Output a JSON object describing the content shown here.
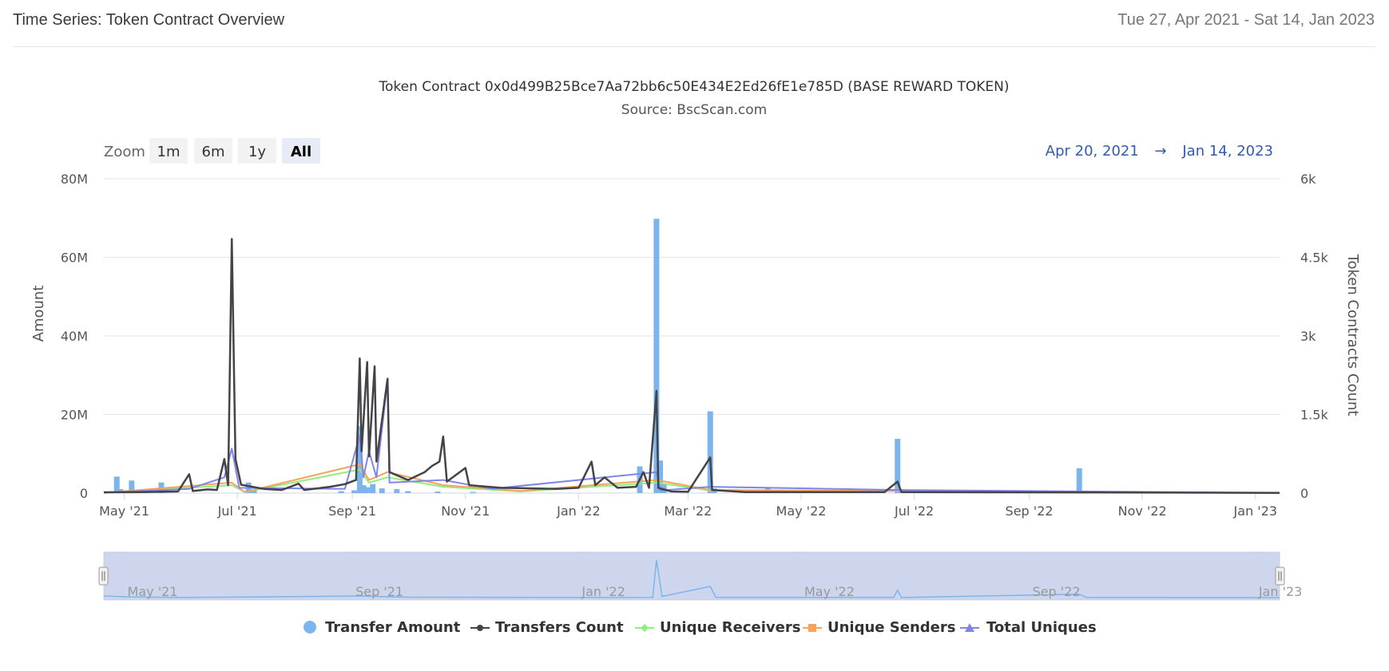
{
  "header": {
    "title": "Time Series: Token Contract Overview",
    "date_range": "Tue 27, Apr 2021 - Sat 14, Jan 2023"
  },
  "toolbar": {
    "zoom_label": "Zoom",
    "buttons": [
      "1m",
      "6m",
      "1y",
      "All"
    ],
    "active_button": "All",
    "range_from": "Apr 20, 2021",
    "range_arrow": "→",
    "range_to": "Jan 14, 2023"
  },
  "chart_data": {
    "type": "bar",
    "title": "Token Contract 0x0d499B25Bce7Aa72bb6c50E434E2Ed26fE1e785D (BASE REWARD TOKEN)",
    "subtitle": "Source: BscScan.com",
    "xlabel": "",
    "ylabel": "Amount",
    "y2label": "Token Contracts Count",
    "ylim": [
      0,
      80000000
    ],
    "y2lim": [
      0,
      6000
    ],
    "xlim": [
      "2021-04-20",
      "2023-01-14"
    ],
    "y_ticks": [
      "0",
      "20M",
      "40M",
      "60M",
      "80M"
    ],
    "y2_ticks": [
      "0",
      "1.5k",
      "3k",
      "4.5k",
      "6k"
    ],
    "x_ticks": [
      "May '21",
      "Jul '21",
      "Sep '21",
      "Nov '21",
      "Jan '22",
      "Mar '22",
      "May '22",
      "Jul '22",
      "Sep '22",
      "Nov '22",
      "Jan '23"
    ],
    "navigator_ticks": [
      "May '21",
      "Sep '21",
      "Jan '22",
      "May '22",
      "Sep '22",
      "Jan '23"
    ],
    "grid": true,
    "legend_position": "bottom-center",
    "colors": {
      "transfer_amount": "#7cb5ec",
      "transfers_count": "#434348",
      "unique_receivers": "#90ed7d",
      "unique_senders": "#f7a35c",
      "total_uniques": "#8085e9"
    },
    "series": [
      {
        "name": "Transfer Amount",
        "axis": "left",
        "kind": "column",
        "points": [
          [
            "2021-04-27",
            4200000
          ],
          [
            "2021-04-29",
            1000000
          ],
          [
            "2021-05-05",
            3200000
          ],
          [
            "2021-05-21",
            2700000
          ],
          [
            "2021-07-07",
            2700000
          ],
          [
            "2021-07-10",
            800000
          ],
          [
            "2021-08-26",
            500000
          ],
          [
            "2021-09-02",
            700000
          ],
          [
            "2021-09-05",
            17000000
          ],
          [
            "2021-09-07",
            2000000
          ],
          [
            "2021-09-09",
            1500000
          ],
          [
            "2021-09-12",
            2300000
          ],
          [
            "2021-09-17",
            1200000
          ],
          [
            "2021-09-25",
            1000000
          ],
          [
            "2021-10-01",
            500000
          ],
          [
            "2021-10-17",
            400000
          ],
          [
            "2021-11-05",
            300000
          ],
          [
            "2022-02-03",
            6800000
          ],
          [
            "2022-02-12",
            69800000
          ],
          [
            "2022-02-14",
            8300000
          ],
          [
            "2022-02-16",
            2200000
          ],
          [
            "2022-03-13",
            20800000
          ],
          [
            "2022-03-15",
            1200000
          ],
          [
            "2022-04-09",
            300000
          ],
          [
            "2022-04-13",
            1400000
          ],
          [
            "2022-06-22",
            13800000
          ],
          [
            "2022-09-28",
            6300000
          ]
        ]
      },
      {
        "name": "Transfers Count",
        "axis": "right",
        "kind": "line",
        "points": [
          [
            "2021-04-20",
            15
          ],
          [
            "2021-05-10",
            20
          ],
          [
            "2021-05-30",
            30
          ],
          [
            "2021-06-05",
            360
          ],
          [
            "2021-06-07",
            40
          ],
          [
            "2021-06-15",
            70
          ],
          [
            "2021-06-20",
            60
          ],
          [
            "2021-06-24",
            650
          ],
          [
            "2021-06-26",
            150
          ],
          [
            "2021-06-28",
            4850
          ],
          [
            "2021-06-30",
            650
          ],
          [
            "2021-07-03",
            160
          ],
          [
            "2021-07-15",
            80
          ],
          [
            "2021-07-25",
            60
          ],
          [
            "2021-08-03",
            180
          ],
          [
            "2021-08-06",
            60
          ],
          [
            "2021-08-20",
            120
          ],
          [
            "2021-08-28",
            170
          ],
          [
            "2021-09-03",
            250
          ],
          [
            "2021-09-05",
            2570
          ],
          [
            "2021-09-06",
            800
          ],
          [
            "2021-09-09",
            2500
          ],
          [
            "2021-09-10",
            700
          ],
          [
            "2021-09-13",
            2420
          ],
          [
            "2021-09-14",
            600
          ],
          [
            "2021-09-20",
            2180
          ],
          [
            "2021-09-21",
            400
          ],
          [
            "2021-10-01",
            250
          ],
          [
            "2021-10-10",
            400
          ],
          [
            "2021-10-14",
            520
          ],
          [
            "2021-10-18",
            600
          ],
          [
            "2021-10-20",
            1080
          ],
          [
            "2021-10-22",
            220
          ],
          [
            "2021-11-01",
            480
          ],
          [
            "2021-11-03",
            150
          ],
          [
            "2021-11-20",
            100
          ],
          [
            "2021-12-20",
            80
          ],
          [
            "2022-01-01",
            100
          ],
          [
            "2022-01-08",
            600
          ],
          [
            "2022-01-10",
            150
          ],
          [
            "2022-01-15",
            300
          ],
          [
            "2022-01-22",
            100
          ],
          [
            "2022-02-01",
            120
          ],
          [
            "2022-02-05",
            400
          ],
          [
            "2022-02-08",
            100
          ],
          [
            "2022-02-12",
            1950
          ],
          [
            "2022-02-13",
            100
          ],
          [
            "2022-02-20",
            30
          ],
          [
            "2022-03-01",
            25
          ],
          [
            "2022-03-13",
            680
          ],
          [
            "2022-03-14",
            60
          ],
          [
            "2022-04-01",
            20
          ],
          [
            "2022-06-15",
            20
          ],
          [
            "2022-06-22",
            220
          ],
          [
            "2022-06-24",
            20
          ],
          [
            "2023-01-14",
            5
          ]
        ]
      },
      {
        "name": "Unique Receivers",
        "axis": "right",
        "kind": "line",
        "points": [
          [
            "2021-04-20",
            5
          ],
          [
            "2021-06-28",
            150
          ],
          [
            "2021-07-05",
            20
          ],
          [
            "2021-09-05",
            450
          ],
          [
            "2021-09-10",
            200
          ],
          [
            "2021-09-20",
            300
          ],
          [
            "2021-10-20",
            120
          ],
          [
            "2021-12-01",
            30
          ],
          [
            "2022-02-12",
            200
          ],
          [
            "2022-03-13",
            50
          ],
          [
            "2022-06-22",
            40
          ],
          [
            "2023-01-14",
            2
          ]
        ]
      },
      {
        "name": "Unique Senders",
        "axis": "right",
        "kind": "line",
        "points": [
          [
            "2021-04-20",
            5
          ],
          [
            "2021-06-28",
            200
          ],
          [
            "2021-07-05",
            20
          ],
          [
            "2021-09-05",
            550
          ],
          [
            "2021-09-10",
            250
          ],
          [
            "2021-09-20",
            400
          ],
          [
            "2021-10-20",
            150
          ],
          [
            "2021-12-01",
            40
          ],
          [
            "2022-02-12",
            250
          ],
          [
            "2022-03-13",
            60
          ],
          [
            "2022-06-22",
            40
          ],
          [
            "2023-01-14",
            2
          ]
        ]
      },
      {
        "name": "Total Uniques",
        "axis": "right",
        "kind": "line",
        "points": [
          [
            "2021-04-20",
            8
          ],
          [
            "2021-06-05",
            80
          ],
          [
            "2021-06-24",
            300
          ],
          [
            "2021-06-28",
            850
          ],
          [
            "2021-07-02",
            100
          ],
          [
            "2021-08-28",
            80
          ],
          [
            "2021-09-05",
            1100
          ],
          [
            "2021-09-07",
            300
          ],
          [
            "2021-09-10",
            800
          ],
          [
            "2021-09-14",
            300
          ],
          [
            "2021-09-20",
            2150
          ],
          [
            "2021-09-21",
            200
          ],
          [
            "2021-10-20",
            250
          ],
          [
            "2021-11-15",
            80
          ],
          [
            "2022-02-12",
            400
          ],
          [
            "2022-02-14",
            50
          ],
          [
            "2022-03-13",
            120
          ],
          [
            "2022-06-22",
            60
          ],
          [
            "2023-01-14",
            3
          ]
        ]
      }
    ],
    "navigator_series": [
      [
        "2021-04-20",
        3000000
      ],
      [
        "2021-05-05",
        1000000
      ],
      [
        "2021-06-01",
        200000
      ],
      [
        "2021-07-07",
        1200000
      ],
      [
        "2021-09-05",
        3000000
      ],
      [
        "2021-10-01",
        800000
      ],
      [
        "2022-01-01",
        200000
      ],
      [
        "2022-02-10",
        500000
      ],
      [
        "2022-02-12",
        69800000
      ],
      [
        "2022-02-15",
        2000000
      ],
      [
        "2022-03-13",
        20800000
      ],
      [
        "2022-03-16",
        500000
      ],
      [
        "2022-06-20",
        300000
      ],
      [
        "2022-06-22",
        13800000
      ],
      [
        "2022-06-24",
        200000
      ],
      [
        "2022-09-28",
        6300000
      ],
      [
        "2022-10-02",
        100000
      ],
      [
        "2023-01-14",
        50000
      ]
    ]
  }
}
